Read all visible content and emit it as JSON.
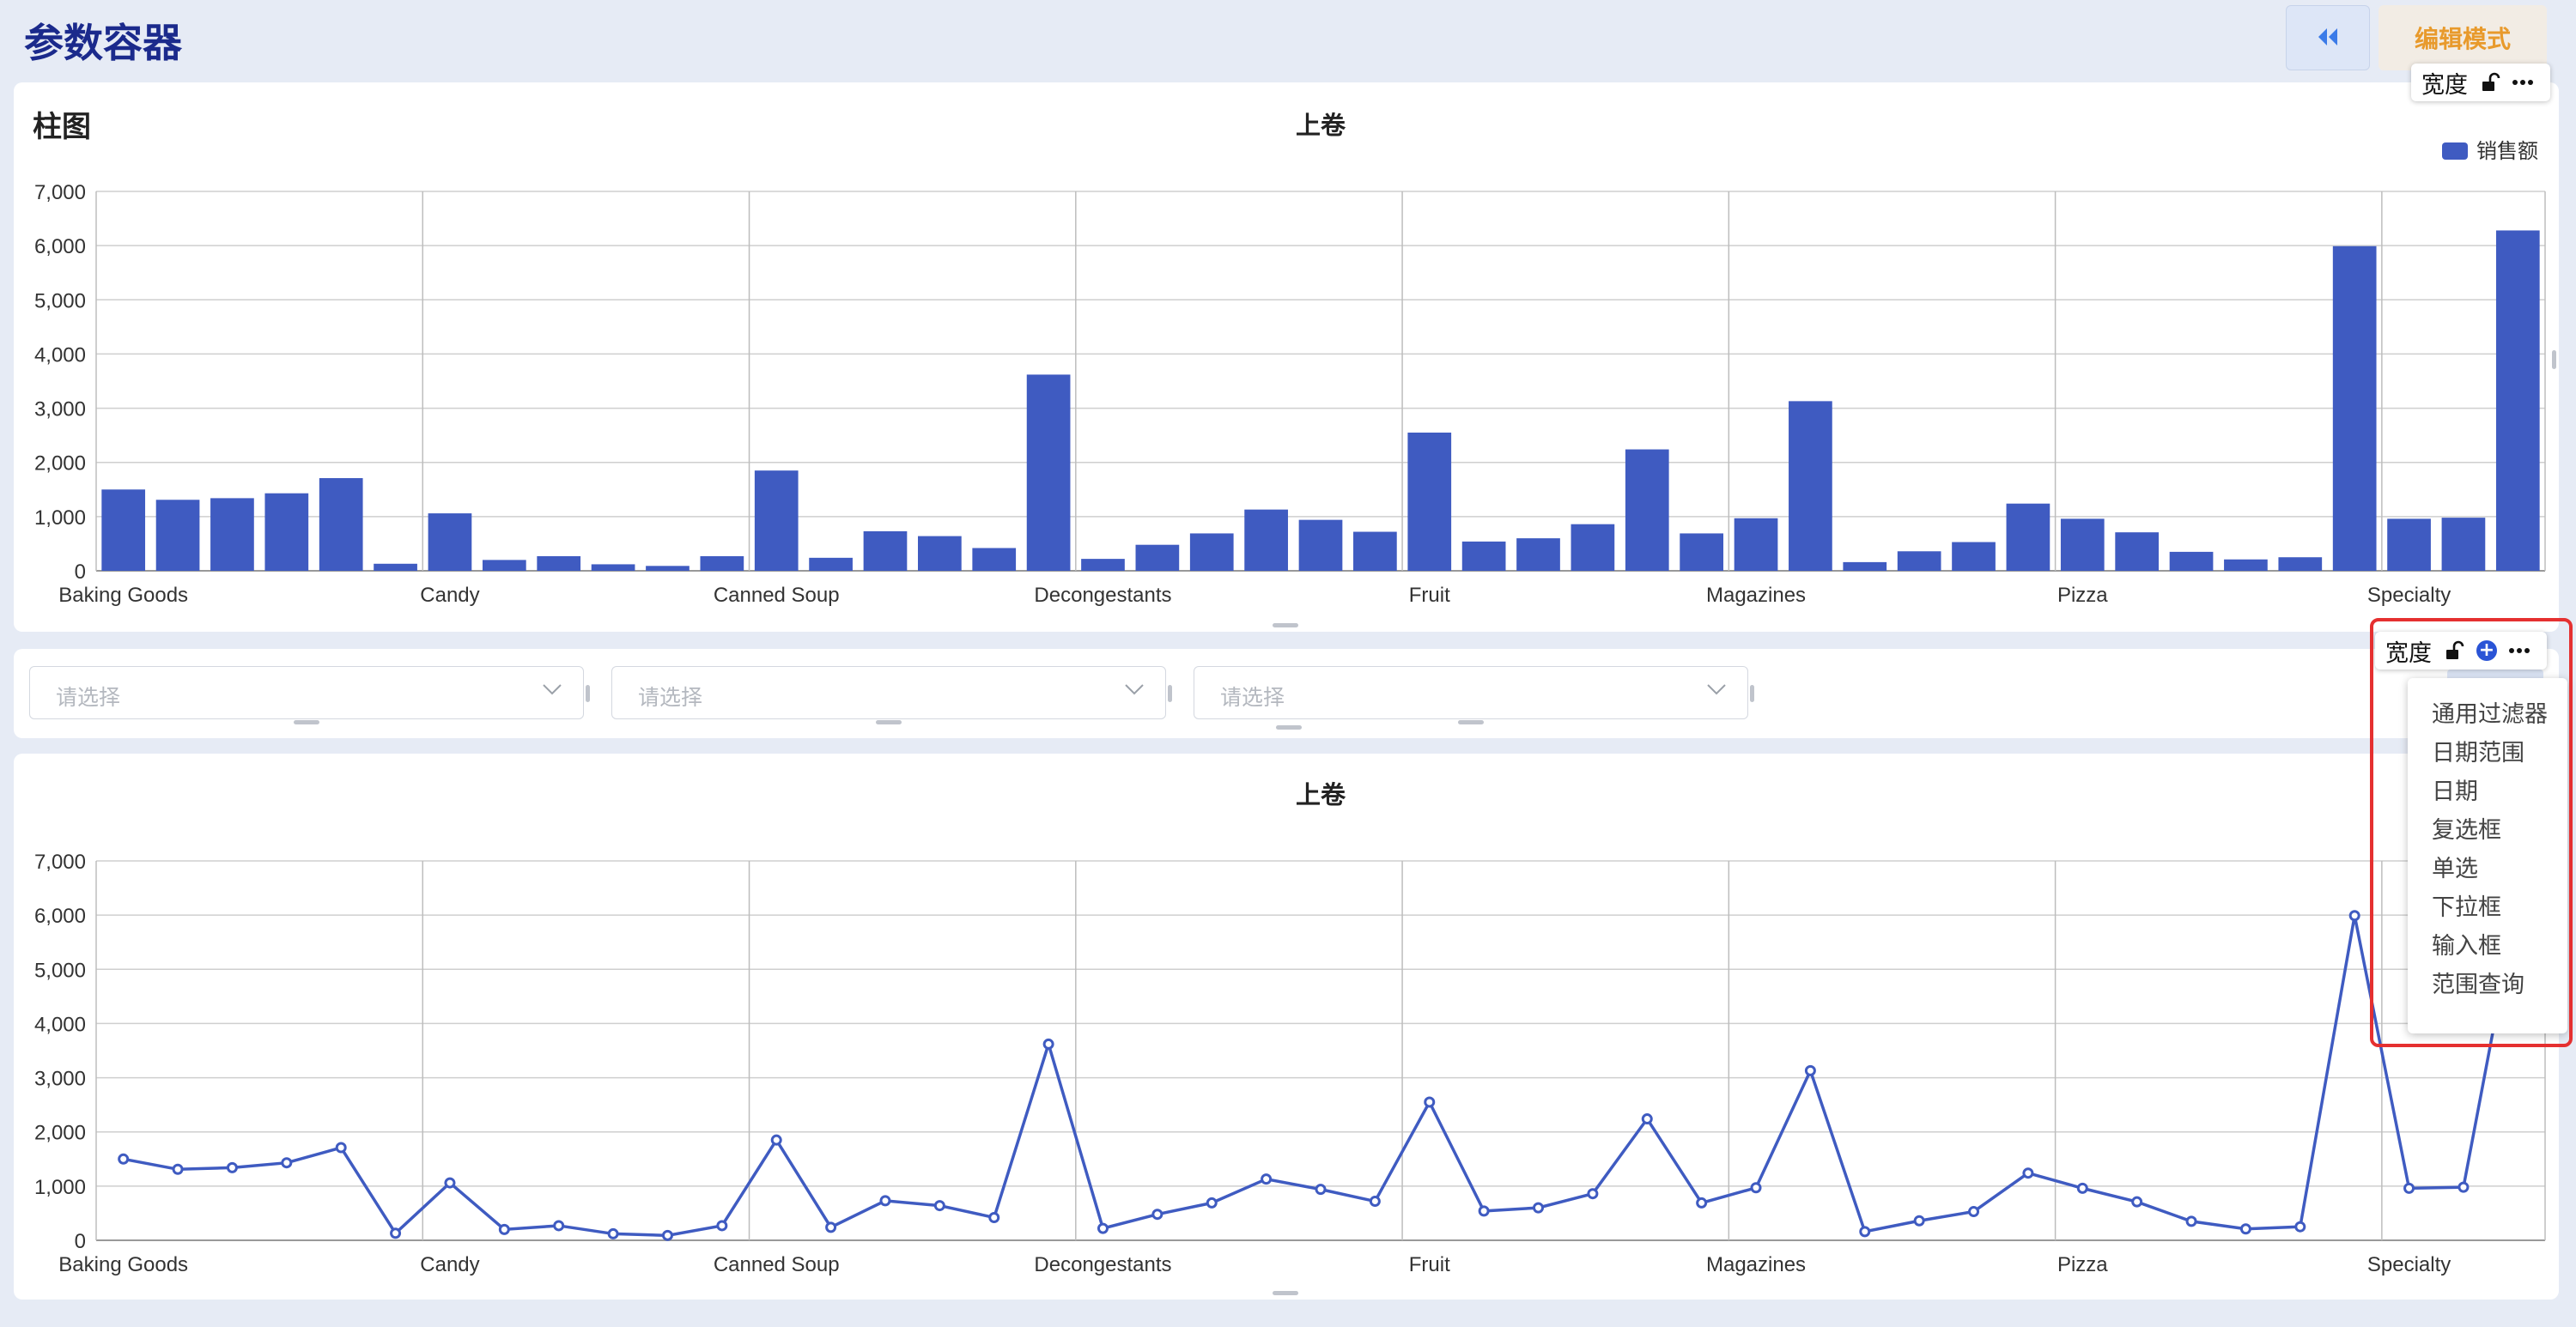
{
  "header": {
    "title": "参数容器",
    "collapse_icon": "double-chevron-left-icon",
    "edit_mode_label": "编辑模式"
  },
  "colors": {
    "accent": "#3f5bc1",
    "page_bg": "#e6ebf5",
    "edit_text": "#e89a2c",
    "highlight": "#e53030"
  },
  "bar_card": {
    "title": "柱图",
    "toolbar": {
      "width_label": "宽度",
      "lock_icon": "unlock-icon",
      "more_icon": "ellipsis-icon"
    }
  },
  "filter_row": {
    "selects": [
      {
        "placeholder": "请选择"
      },
      {
        "placeholder": "请选择"
      },
      {
        "placeholder": "请选择"
      }
    ],
    "toolbar": {
      "width_label": "宽度",
      "lock_icon": "unlock-icon",
      "add_icon": "plus-circle-icon",
      "more_icon": "ellipsis-icon"
    }
  },
  "add_menu": {
    "items": [
      "通用过滤器",
      "日期范围",
      "日期",
      "复选框",
      "单选",
      "下拉框",
      "输入框",
      "范围查询"
    ]
  },
  "chart_data": [
    {
      "type": "bar",
      "title": "上卷",
      "legend": "top-right",
      "series": [
        {
          "name": "销售额",
          "values": [
            1500,
            1310,
            1340,
            1430,
            1710,
            130,
            1060,
            200,
            270,
            120,
            90,
            270,
            1850,
            240,
            730,
            640,
            420,
            3620,
            220,
            480,
            690,
            1130,
            940,
            720,
            2550,
            540,
            600,
            860,
            2240,
            690,
            970,
            3130,
            160,
            360,
            530,
            1240,
            960,
            710,
            350,
            210,
            250,
            5990,
            960,
            980,
            6280
          ]
        }
      ],
      "x_tick_labels": [
        "Baking Goods",
        "Candy",
        "Canned Soup",
        "Decongestants",
        "Fruit",
        "Magazines",
        "Pizza",
        "Specialty"
      ],
      "x_tick_index": [
        0,
        6,
        12,
        18,
        24,
        30,
        36,
        42
      ],
      "ylim": [
        0,
        7000
      ],
      "y_ticks": [
        "0",
        "1,000",
        "2,000",
        "3,000",
        "4,000",
        "5,000",
        "6,000",
        "7,000"
      ],
      "grid": true
    },
    {
      "type": "line",
      "title": "上卷",
      "series": [
        {
          "name": "销售额",
          "values": [
            1500,
            1310,
            1340,
            1430,
            1710,
            130,
            1060,
            200,
            270,
            120,
            90,
            270,
            1850,
            240,
            730,
            640,
            420,
            3620,
            220,
            480,
            690,
            1130,
            940,
            720,
            2550,
            540,
            600,
            860,
            2240,
            690,
            970,
            3130,
            160,
            360,
            530,
            1240,
            960,
            710,
            350,
            210,
            250,
            5990,
            960,
            980,
            6280
          ]
        }
      ],
      "x_tick_labels": [
        "Baking Goods",
        "Candy",
        "Canned Soup",
        "Decongestants",
        "Fruit",
        "Magazines",
        "Pizza",
        "Specialty"
      ],
      "x_tick_index": [
        0,
        6,
        12,
        18,
        24,
        30,
        36,
        42
      ],
      "ylim": [
        0,
        7000
      ],
      "y_ticks": [
        "0",
        "1,000",
        "2,000",
        "3,000",
        "4,000",
        "5,000",
        "6,000",
        "7,000"
      ],
      "grid": true
    }
  ]
}
